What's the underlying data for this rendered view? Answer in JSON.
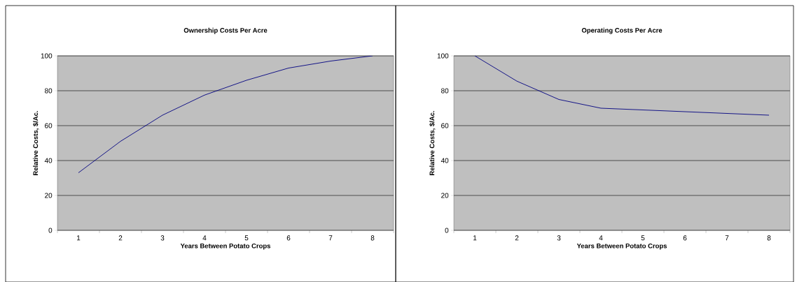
{
  "chart_data": [
    {
      "type": "line",
      "title": "Ownership Costs Per Acre",
      "xlabel": "Years Between Potato Crops",
      "ylabel": "Relative Costs, $/Ac.",
      "categories": [
        "1",
        "2",
        "3",
        "4",
        "5",
        "6",
        "7",
        "8"
      ],
      "values": [
        33,
        51,
        66,
        77.5,
        86,
        93,
        97,
        100
      ],
      "color": "#000080",
      "ylim": [
        0,
        100
      ],
      "yticks": [
        0,
        20,
        40,
        60,
        80,
        100
      ],
      "grid": "y",
      "marker": "none"
    },
    {
      "type": "line",
      "title": "Operating Costs Per Acre",
      "xlabel": "Years Between Potato Crops",
      "ylabel": "Relative Costs, $/Ac.",
      "categories": [
        "1",
        "2",
        "3",
        "4",
        "5",
        "6",
        "7",
        "8"
      ],
      "values": [
        100,
        85.5,
        75,
        70,
        69,
        68,
        67,
        66
      ],
      "color": "#000080",
      "ylim": [
        0,
        100
      ],
      "yticks": [
        0,
        20,
        40,
        60,
        80,
        100
      ],
      "grid": "y",
      "marker": "none"
    }
  ]
}
